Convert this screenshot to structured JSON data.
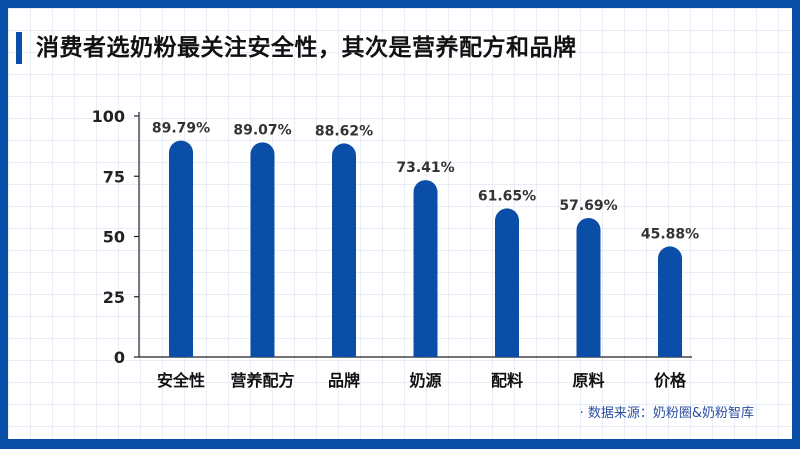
{
  "header": {
    "title": "消费者选奶粉最关注安全性，其次是营养配方和品牌",
    "accent_color": "#0b4ea8"
  },
  "footer": {
    "source": "· 数据来源：奶粉圈&奶粉智库"
  },
  "chart_data": {
    "type": "bar",
    "categories": [
      "安全性",
      "营养配方",
      "品牌",
      "奶源",
      "配料",
      "原料",
      "价格"
    ],
    "values": [
      89.79,
      89.07,
      88.62,
      73.41,
      61.65,
      57.69,
      45.88
    ],
    "value_labels": [
      "89.79%",
      "89.07%",
      "88.62%",
      "73.41%",
      "61.65%",
      "57.69%",
      "45.88%"
    ],
    "yticks": [
      0,
      25,
      50,
      75,
      100
    ],
    "ytick_labels": [
      "0",
      "25",
      "50",
      "75",
      "100"
    ],
    "ylim": [
      0,
      100
    ],
    "xlabel": "",
    "ylabel": "",
    "grid": true,
    "bar_color": "#0b4ea8"
  }
}
